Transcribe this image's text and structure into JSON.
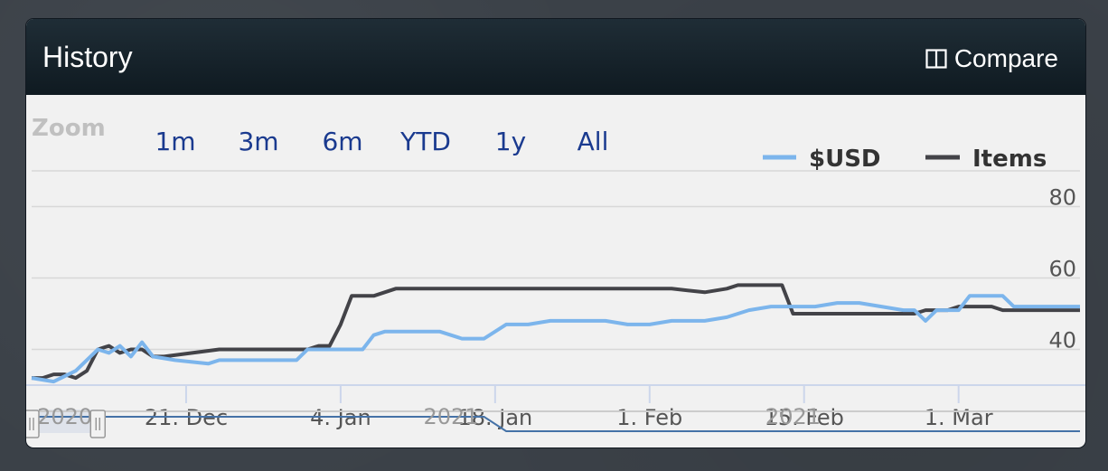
{
  "header": {
    "title": "History",
    "compare_label": "Compare"
  },
  "zoom": {
    "label": "Zoom",
    "buttons": [
      "1m",
      "3m",
      "6m",
      "YTD",
      "1y",
      "All"
    ]
  },
  "colors": {
    "usd": "#7cb5ec",
    "items": "#434348",
    "grid": "#d8d8d8",
    "axis_text": "#555555",
    "zoom_btn": "#1a3a8f"
  },
  "chart_data": {
    "type": "line",
    "xlabel": "",
    "ylabel": "",
    "x_range": [
      "2020-12-07",
      "2021-03-12"
    ],
    "ylim": [
      30,
      90
    ],
    "y_ticks": [
      40,
      60,
      80
    ],
    "x_ticks": [
      "21. Dec",
      "4. Jan",
      "18. Jan",
      "1. Feb",
      "15. Feb",
      "1. Mar"
    ],
    "x_tick_dates": [
      "2020-12-21",
      "2021-01-04",
      "2021-01-18",
      "2021-02-01",
      "2021-02-15",
      "2021-03-01"
    ],
    "legend_position": "top-right",
    "grid": true,
    "series": [
      {
        "name": "$USD",
        "points": [
          [
            "2020-12-07",
            32
          ],
          [
            "2020-12-09",
            31
          ],
          [
            "2020-12-11",
            34
          ],
          [
            "2020-12-13",
            40
          ],
          [
            "2020-12-14",
            39
          ],
          [
            "2020-12-15",
            41
          ],
          [
            "2020-12-16",
            38
          ],
          [
            "2020-12-17",
            42
          ],
          [
            "2020-12-18",
            38
          ],
          [
            "2020-12-20",
            37
          ],
          [
            "2020-12-23",
            36
          ],
          [
            "2020-12-24",
            37
          ],
          [
            "2020-12-28",
            37
          ],
          [
            "2020-12-31",
            37
          ],
          [
            "2021-01-01",
            40
          ],
          [
            "2021-01-03",
            40
          ],
          [
            "2021-01-06",
            40
          ],
          [
            "2021-01-07",
            44
          ],
          [
            "2021-01-08",
            45
          ],
          [
            "2021-01-09",
            45
          ],
          [
            "2021-01-11",
            45
          ],
          [
            "2021-01-13",
            45
          ],
          [
            "2021-01-15",
            43
          ],
          [
            "2021-01-17",
            43
          ],
          [
            "2021-01-19",
            47
          ],
          [
            "2021-01-21",
            47
          ],
          [
            "2021-01-23",
            48
          ],
          [
            "2021-01-28",
            48
          ],
          [
            "2021-01-30",
            47
          ],
          [
            "2021-02-01",
            47
          ],
          [
            "2021-02-03",
            48
          ],
          [
            "2021-02-06",
            48
          ],
          [
            "2021-02-08",
            49
          ],
          [
            "2021-02-10",
            51
          ],
          [
            "2021-02-12",
            52
          ],
          [
            "2021-02-16",
            52
          ],
          [
            "2021-02-18",
            53
          ],
          [
            "2021-02-20",
            53
          ],
          [
            "2021-02-22",
            52
          ],
          [
            "2021-02-24",
            51
          ],
          [
            "2021-02-25",
            51
          ],
          [
            "2021-02-26",
            48
          ],
          [
            "2021-02-27",
            51
          ],
          [
            "2021-03-01",
            51
          ],
          [
            "2021-03-02",
            55
          ],
          [
            "2021-03-05",
            55
          ],
          [
            "2021-03-06",
            52
          ],
          [
            "2021-03-12",
            52
          ]
        ]
      },
      {
        "name": "Items",
        "points": [
          [
            "2020-12-07",
            32
          ],
          [
            "2020-12-08",
            32
          ],
          [
            "2020-12-09",
            33
          ],
          [
            "2020-12-10",
            33
          ],
          [
            "2020-12-11",
            32
          ],
          [
            "2020-12-12",
            34
          ],
          [
            "2020-12-13",
            40
          ],
          [
            "2020-12-14",
            41
          ],
          [
            "2020-12-15",
            39
          ],
          [
            "2020-12-16",
            40
          ],
          [
            "2020-12-17",
            40
          ],
          [
            "2020-12-18",
            38
          ],
          [
            "2020-12-19",
            38
          ],
          [
            "2020-12-24",
            40
          ],
          [
            "2021-01-01",
            40
          ],
          [
            "2021-01-02",
            41
          ],
          [
            "2021-01-03",
            41
          ],
          [
            "2021-01-04",
            47
          ],
          [
            "2021-01-05",
            55
          ],
          [
            "2021-01-07",
            55
          ],
          [
            "2021-01-08",
            56
          ],
          [
            "2021-01-09",
            57
          ],
          [
            "2021-01-11",
            57
          ],
          [
            "2021-01-15",
            57
          ],
          [
            "2021-01-18",
            57
          ],
          [
            "2021-01-19",
            57
          ],
          [
            "2021-02-02",
            57
          ],
          [
            "2021-02-03",
            57
          ],
          [
            "2021-02-06",
            56
          ],
          [
            "2021-02-08",
            57
          ],
          [
            "2021-02-09",
            58
          ],
          [
            "2021-02-10",
            58
          ],
          [
            "2021-02-13",
            58
          ],
          [
            "2021-02-14",
            50
          ],
          [
            "2021-02-25",
            50
          ],
          [
            "2021-02-26",
            51
          ],
          [
            "2021-02-28",
            51
          ],
          [
            "2021-03-01",
            52
          ],
          [
            "2021-03-04",
            52
          ],
          [
            "2021-03-05",
            51
          ],
          [
            "2021-03-12",
            51
          ]
        ]
      }
    ]
  },
  "navigator": {
    "labels": [
      {
        "text": "2020",
        "date": "2020-12-10"
      },
      {
        "text": "2021",
        "date": "2021-01-14"
      },
      {
        "text": "2021",
        "date": "2021-02-14"
      }
    ],
    "selected_range": [
      "2020-12-07",
      "2020-12-13"
    ]
  }
}
